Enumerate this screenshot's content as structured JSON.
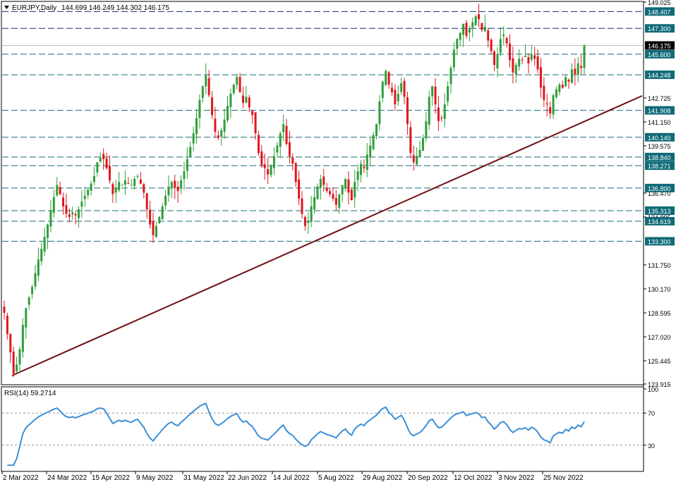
{
  "header": {
    "symbol": "EURJPY,Daily",
    "ohlc": "144.699 146.249 144.302 146.175"
  },
  "rsi_header": "RSI(14) 59.2714",
  "colors": {
    "background": "#ffffff",
    "frame": "#000000",
    "bull": "#2e9e3a",
    "bear": "#e0161d",
    "hline": "#1b6a78",
    "hline_top": "#1a2a7a",
    "trendline": "#6e0f12",
    "rsi": "#3a8fd8",
    "current_price_line": "#c0c0c0",
    "label_bg": "#0f6a78",
    "label_text": "#ffffff",
    "price_label_bg": "#000000"
  },
  "chart_data": {
    "type": "candlestick",
    "symbol": "EURJPY",
    "timeframe": "Daily",
    "last": {
      "open": 144.699,
      "high": 146.249,
      "low": 144.302,
      "close": 146.175
    },
    "price_axis": {
      "min": 123.915,
      "max": 149.025,
      "ticks": [
        149.025,
        147.3,
        146.175,
        145.6,
        144.248,
        142.725,
        141.908,
        141.15,
        140.14,
        139.575,
        138.84,
        138.271,
        136.8,
        136.47,
        135.313,
        134.895,
        134.619,
        133.3,
        131.75,
        130.17,
        128.595,
        127.02,
        125.445,
        123.915
      ]
    },
    "support_resistance_levels": [
      148.407,
      147.3,
      145.6,
      144.248,
      141.908,
      140.14,
      138.84,
      138.271,
      136.8,
      135.313,
      134.619,
      133.3
    ],
    "current_price": 146.175,
    "trendline": {
      "from": {
        "date": "2022-03-07",
        "price": 124.2
      },
      "to": {
        "date": "2022-12-19",
        "price": 144.5
      }
    },
    "x_labels": [
      "2 Mar 2022",
      "24 Mar 2022",
      "15 Apr 2022",
      "9 May 2022",
      "31 May 2022",
      "22 Jun 2022",
      "14 Jul 2022",
      "5 Aug 2022",
      "29 Aug 2022",
      "20 Sep 2022",
      "12 Oct 2022",
      "3 Nov 2022",
      "25 Nov 2022"
    ],
    "closes_approx": [
      128.6,
      127.2,
      126.0,
      124.6,
      125.2,
      126.2,
      127.8,
      128.9,
      129.6,
      130.3,
      131.2,
      132.1,
      132.8,
      133.6,
      134.4,
      135.3,
      136.2,
      137.0,
      136.4,
      135.6,
      135.1,
      134.9,
      135.2,
      135.0,
      135.4,
      135.9,
      136.3,
      136.7,
      137.1,
      137.6,
      138.5,
      138.8,
      138.7,
      138.1,
      137.3,
      136.4,
      136.8,
      137.2,
      137.0,
      137.3,
      137.1,
      137.0,
      137.4,
      137.6,
      137.1,
      136.5,
      135.4,
      134.4,
      133.7,
      134.3,
      134.9,
      135.6,
      136.3,
      136.9,
      137.2,
      136.8,
      136.6,
      137.3,
      137.9,
      138.7,
      139.5,
      140.4,
      141.4,
      142.6,
      143.5,
      144.2,
      142.9,
      141.6,
      140.5,
      140.1,
      140.6,
      141.3,
      142.2,
      143.0,
      143.6,
      144.1,
      143.1,
      142.4,
      142.8,
      142.1,
      141.6,
      140.4,
      139.1,
      138.3,
      138.1,
      137.7,
      138.3,
      138.9,
      139.6,
      140.4,
      141.0,
      139.7,
      138.9,
      138.4,
      137.2,
      136.1,
      135.1,
      134.3,
      134.6,
      135.6,
      136.2,
      136.9,
      137.4,
      137.0,
      136.6,
      136.4,
      136.1,
      135.7,
      136.4,
      137.0,
      137.4,
      136.5,
      136.0,
      137.2,
      137.9,
      138.4,
      138.1,
      139.0,
      139.6,
      140.3,
      141.0,
      142.5,
      143.8,
      144.5,
      143.6,
      143.1,
      142.3,
      143.0,
      143.7,
      142.8,
      141.0,
      139.1,
      138.5,
      138.9,
      139.3,
      140.1,
      141.2,
      142.8,
      143.5,
      142.3,
      141.2,
      141.4,
      142.3,
      143.5,
      144.7,
      145.9,
      146.6,
      147.0,
      147.6,
      146.8,
      147.3,
      147.7,
      148.1,
      147.9,
      147.2,
      147.4,
      146.5,
      145.8,
      144.9,
      145.6,
      146.6,
      146.9,
      146.3,
      145.2,
      144.4,
      144.9,
      145.3,
      145.2,
      145.5,
      145.0,
      145.6,
      145.3,
      144.6,
      143.4,
      142.6,
      142.3,
      141.7,
      142.9,
      143.3,
      143.6,
      143.4,
      144.1,
      143.8,
      144.6,
      144.3,
      145.0,
      144.7,
      146.175
    ]
  },
  "rsi_data": {
    "period": 14,
    "last": 59.2714,
    "levels": [
      70,
      30
    ],
    "axis": {
      "min": 0,
      "max": 100,
      "ticks": [
        100,
        70,
        30,
        0
      ]
    }
  }
}
